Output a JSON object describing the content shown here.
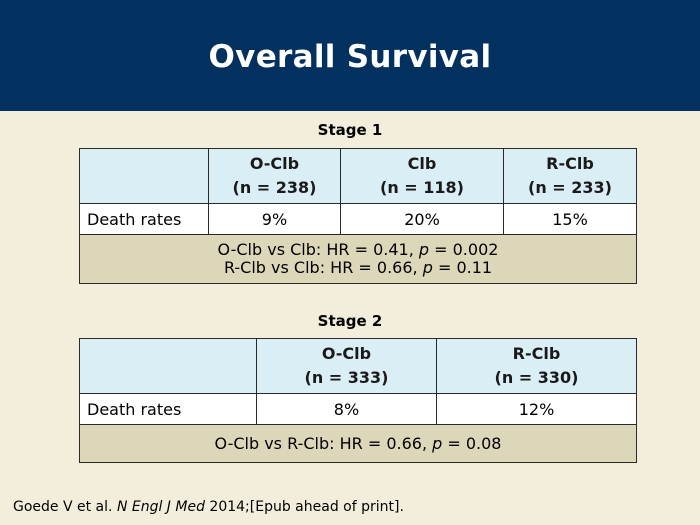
{
  "title": "Overall Survival",
  "stage1": {
    "title": "Stage 1",
    "columns": [
      {
        "name": "O-Clb",
        "n": "(n = 238)"
      },
      {
        "name": "Clb",
        "n": "(n = 118)"
      },
      {
        "name": "R-Clb",
        "n": "(n = 233)"
      }
    ],
    "row_label": "Death rates",
    "values": [
      "9%",
      "20%",
      "15%"
    ],
    "comparisons": [
      {
        "prefix": "O-Clb vs Clb: HR = 0.41, ",
        "p_label": "p",
        "suffix": " = 0.002"
      },
      {
        "prefix": "R-Clb vs Clb: HR = 0.66, ",
        "p_label": "p",
        "suffix": " = 0.11"
      }
    ]
  },
  "stage2": {
    "title": "Stage 2",
    "columns": [
      {
        "name": "O-Clb",
        "n": "(n = 333)"
      },
      {
        "name": "R-Clb",
        "n": "(n = 330)"
      }
    ],
    "row_label": "Death rates",
    "values": [
      "8%",
      "12%"
    ],
    "comparisons": [
      {
        "prefix": "O-Clb vs R-Clb: HR = 0.66, ",
        "p_label": "p",
        "suffix": " = 0.08"
      }
    ]
  },
  "citation": {
    "authors": "Goede V et al. ",
    "journal": "N Engl J Med",
    "rest": " 2014;[Epub ahead of print]."
  }
}
